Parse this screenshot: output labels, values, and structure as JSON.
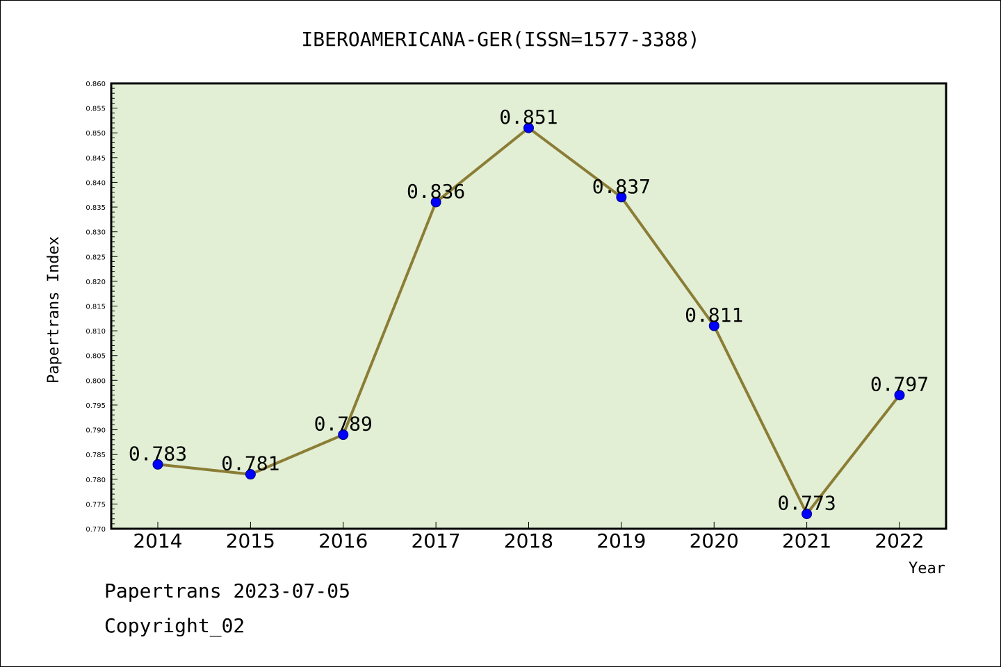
{
  "chart_data": {
    "type": "line",
    "title": "IBEROAMERICANA-GER(ISSN=1577-3388)",
    "xlabel": "Year",
    "ylabel": "Papertrans Index",
    "categories": [
      "2014",
      "2015",
      "2016",
      "2017",
      "2018",
      "2019",
      "2020",
      "2021",
      "2022"
    ],
    "series": [
      {
        "values": [
          0.783,
          0.781,
          0.789,
          0.836,
          0.851,
          0.837,
          0.811,
          0.773,
          0.797
        ]
      }
    ],
    "data_labels": [
      "0.783",
      "0.781",
      "0.789",
      "0.836",
      "0.851",
      "0.837",
      "0.811",
      "0.773",
      "0.797"
    ],
    "ylim": [
      0.77,
      0.86
    ],
    "yticks": [
      "0.770",
      "0.775",
      "0.780",
      "0.785",
      "0.790",
      "0.795",
      "0.800",
      "0.805",
      "0.810",
      "0.815",
      "0.820",
      "0.825",
      "0.830",
      "0.835",
      "0.840",
      "0.845",
      "0.850",
      "0.855",
      "0.860"
    ],
    "grid": false,
    "legend": "none",
    "colors": {
      "plot_background": "#e2efd5",
      "line": "#8b7d35",
      "marker_fill": "#0000ff",
      "marker_stroke": "#00007a"
    }
  },
  "footer": {
    "line1": "Papertrans 2023-07-05",
    "line2": "Copyright_02"
  }
}
